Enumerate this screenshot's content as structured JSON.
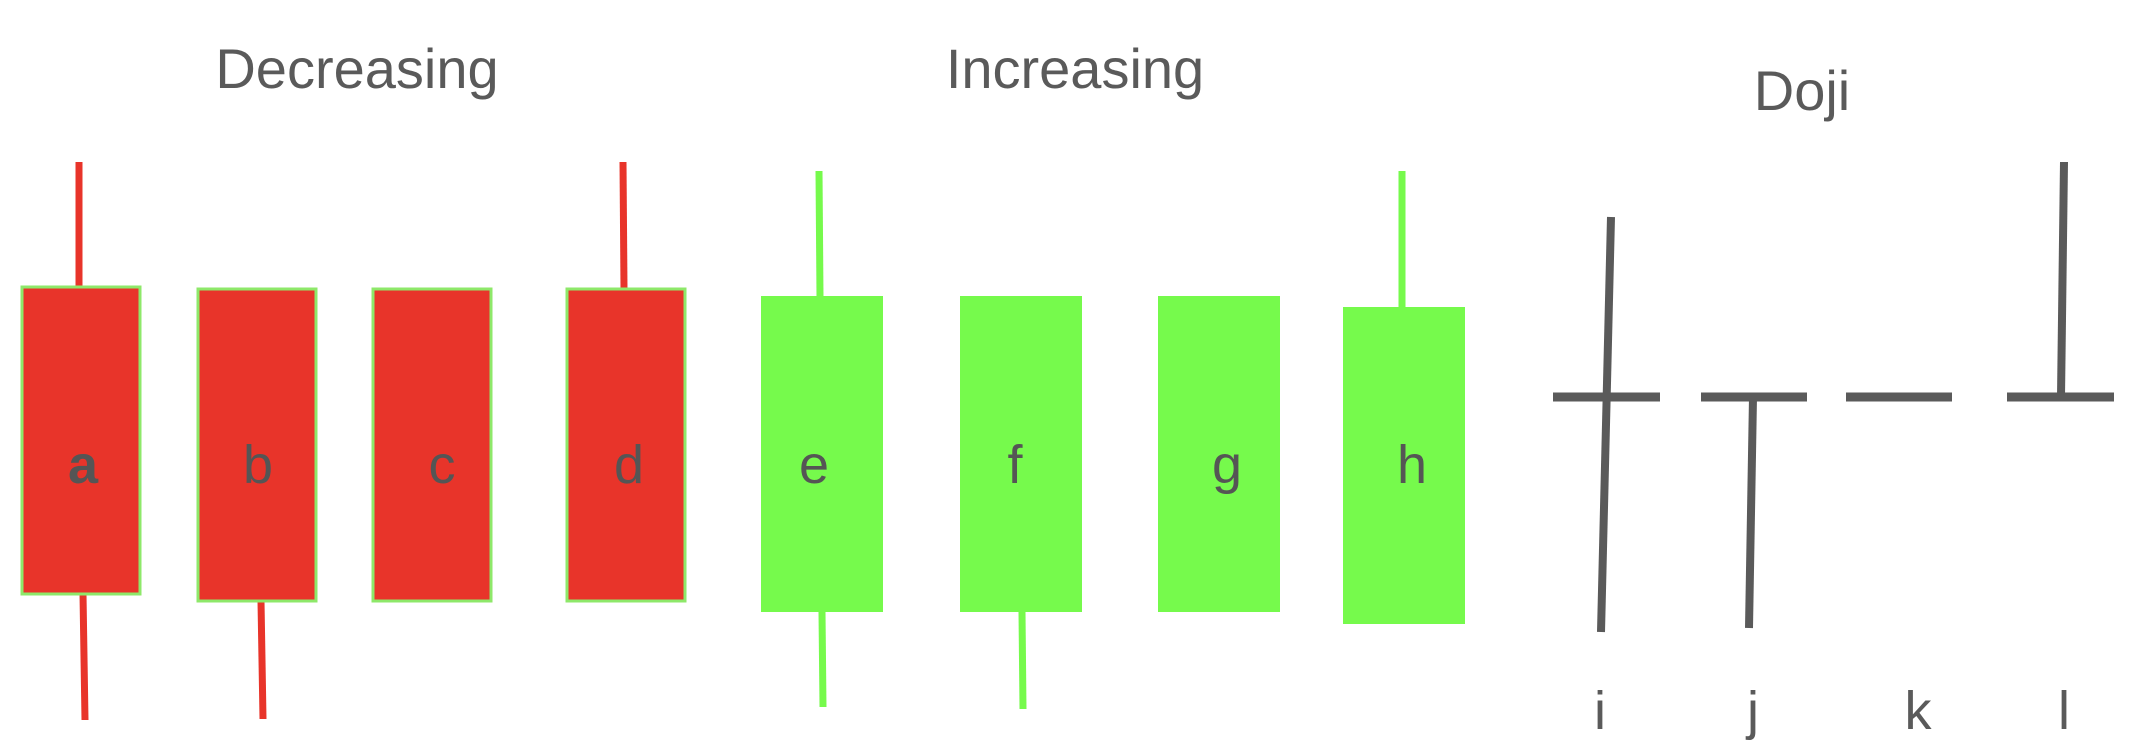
{
  "groups": {
    "decreasing": "Decreasing",
    "increasing": "Increasing",
    "doji": "Doji"
  },
  "colors": {
    "decreasing_fill": "#e8342a",
    "decreasing_border": "#8ee86a",
    "increasing_fill": "#76fa4c",
    "doji_line": "#5a5a5a",
    "text": "#5a5a5a"
  },
  "candles": {
    "a": "a",
    "b": "b",
    "c": "c",
    "d": "d",
    "e": "e",
    "f": "f",
    "g": "g",
    "h": "h",
    "i": "i",
    "j": "j",
    "k": "k",
    "l": "l"
  }
}
